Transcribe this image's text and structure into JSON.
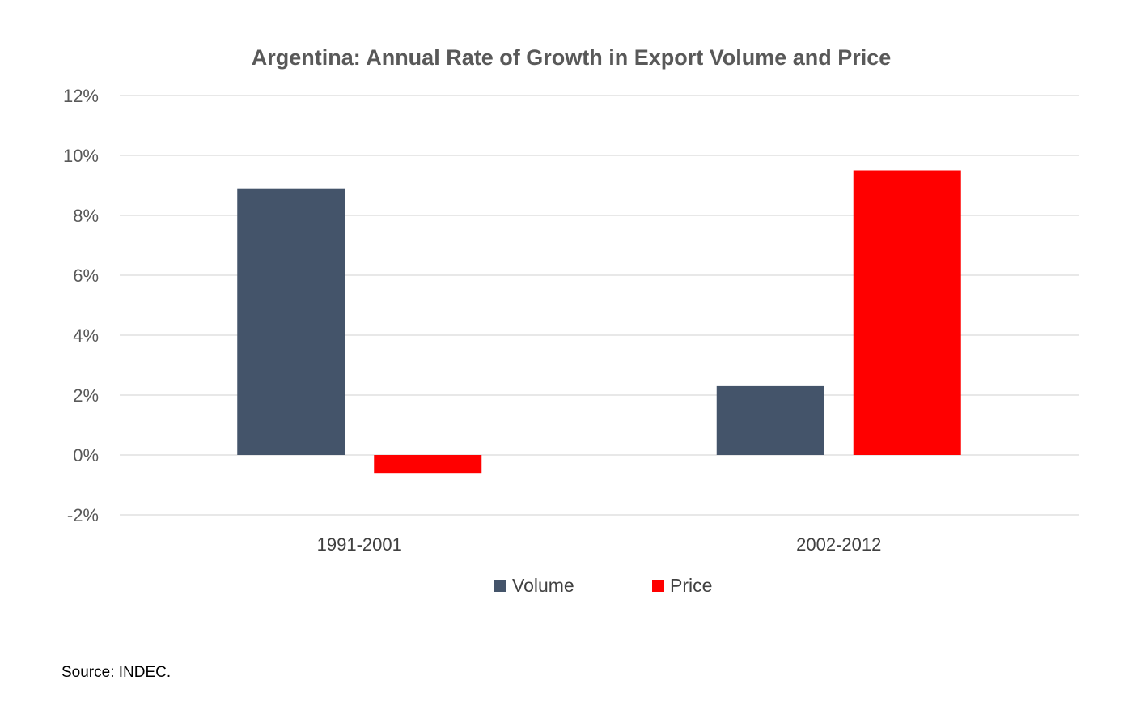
{
  "chart_data": {
    "type": "bar",
    "title": "Argentina: Annual Rate of Growth in Export Volume and Price",
    "categories": [
      "1991-2001",
      "2002-2012"
    ],
    "series": [
      {
        "name": "Volume",
        "values": [
          8.9,
          2.3
        ],
        "color": "#44546A"
      },
      {
        "name": "Price",
        "values": [
          -0.6,
          9.5
        ],
        "color": "#FF0000"
      }
    ],
    "ylim": [
      -2,
      12
    ],
    "yticks": [
      12,
      10,
      8,
      6,
      4,
      2,
      0,
      -2
    ],
    "ytick_labels": [
      "12%",
      "10%",
      "8%",
      "6%",
      "4%",
      "2%",
      "0%",
      "-2%"
    ],
    "grid": true,
    "legend_position": "bottom",
    "xlabel": "",
    "ylabel": ""
  },
  "source_note": "Source: INDEC."
}
